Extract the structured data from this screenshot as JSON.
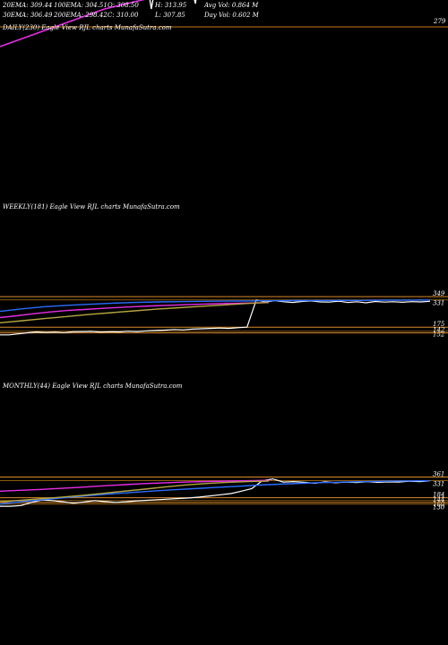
{
  "header": {
    "row1": [
      {
        "key": "ema20",
        "text": "20EMA: 309.44"
      },
      {
        "key": "ema100",
        "text": "100EMA: 304.51"
      },
      {
        "key": "open",
        "text": "O: 308.50"
      },
      {
        "key": "high",
        "text": "H: 313.95"
      },
      {
        "key": "avgvol",
        "text": "Avg Vol: 0.864  M"
      }
    ],
    "row2": [
      {
        "key": "ema30",
        "text": "30EMA: 306.49"
      },
      {
        "key": "ema200",
        "text": "200EMA: 298.42"
      },
      {
        "key": "close",
        "text": "C: 310.00"
      },
      {
        "key": "low",
        "text": "L: 307.85"
      },
      {
        "key": "dayvol",
        "text": "Day Vol: 0.602  M"
      }
    ]
  },
  "panels": {
    "daily": {
      "label": "DAILY(230) Eagle   View  RJL  charts MunafaSutra.com"
    },
    "weekly": {
      "label": "WEEKLY(181) Eagle   View  RJL  charts MunafaSutra.com"
    },
    "monthly": {
      "label": "MONTHLY(44) Eagle   View  RJL  charts MunafaSutra.com"
    }
  },
  "chart_data": [
    {
      "type": "line",
      "panel": "daily",
      "price_levels": [
        279
      ],
      "series": [
        {
          "role": "price",
          "color": "#ffffff",
          "values": [
            304,
            306,
            302,
            299,
            301,
            289,
            300,
            306,
            304,
            310,
            307,
            312,
            309,
            305,
            311,
            313,
            308,
            300,
            292,
            306,
            312,
            309,
            314,
            311,
            308,
            312,
            305,
            297,
            302,
            312,
            310,
            315,
            317,
            312,
            314,
            316,
            312,
            310
          ]
        },
        {
          "role": "ema-slow",
          "color": "#e62ee6",
          "values": [
            268,
            271,
            274,
            277,
            280,
            283,
            286,
            289,
            291,
            293,
            295,
            296,
            297,
            298,
            299,
            300,
            301,
            302,
            303,
            304,
            305,
            306,
            306,
            307,
            307,
            308,
            308,
            309,
            309,
            310,
            310
          ]
        },
        {
          "role": "ema-mid",
          "color": "#1e90ff",
          "values": [
            296,
            298,
            301,
            304,
            307,
            306,
            304,
            305,
            307,
            309,
            311
          ]
        }
      ]
    },
    {
      "type": "line",
      "panel": "weekly",
      "price_levels": [
        349,
        331,
        175,
        152,
        142
      ],
      "level_labels": [
        "349",
        "331",
        "175",
        "152",
        "142"
      ],
      "series": [
        {
          "role": "price",
          "color": "#ffffff",
          "values": [
            131,
            131,
            137,
            143,
            148,
            145,
            147,
            144,
            149,
            150,
            151,
            147,
            149,
            148,
            152,
            150,
            154,
            156,
            158,
            162,
            160,
            164,
            166,
            168,
            170,
            168,
            172,
            175,
            330,
            318,
            326,
            320,
            316,
            322,
            325,
            319,
            318,
            324,
            316,
            320,
            314,
            322,
            318,
            320,
            317,
            321,
            319,
            323
          ]
        },
        {
          "role": "ema-blue",
          "color": "#2b6cff",
          "values": [
            265,
            280,
            292,
            300,
            306,
            312,
            316,
            319,
            321,
            323,
            324,
            325,
            326,
            327,
            327,
            328,
            328,
            329,
            329,
            330
          ]
        },
        {
          "role": "ema-magenta",
          "color": "#e62ee6",
          "values": [
            230,
            240,
            252,
            262,
            270,
            276,
            282,
            287,
            292,
            296,
            300,
            303,
            306,
            309,
            311,
            313,
            315
          ]
        },
        {
          "role": "ema-olive",
          "color": "#b5a642",
          "values": [
            200,
            212,
            224,
            236,
            248,
            258,
            268,
            278,
            286,
            294,
            302,
            310,
            316
          ]
        }
      ]
    },
    {
      "type": "line",
      "panel": "monthly",
      "price_levels": [
        361,
        331,
        184,
        160,
        144,
        130
      ],
      "level_labels": [
        "361",
        "331",
        "184",
        "160",
        "144",
        "130"
      ],
      "series": [
        {
          "role": "price",
          "color": "#ffffff",
          "values": [
            112,
            112,
            118,
            145,
            165,
            160,
            150,
            138,
            148,
            160,
            152,
            145,
            150,
            158,
            162,
            168,
            172,
            178,
            182,
            190,
            200,
            210,
            220,
            240,
            262,
            330,
            345,
            318,
            322,
            316,
            308,
            320,
            312,
            318,
            314,
            322,
            316,
            320,
            318,
            326,
            322,
            330
          ]
        },
        {
          "role": "ema-blue",
          "color": "#2b6cff",
          "values": [
            130,
            150,
            168,
            185,
            200,
            215,
            228,
            240,
            252,
            262,
            272,
            282,
            292,
            300,
            308,
            314,
            318,
            322,
            325,
            328,
            330
          ]
        },
        {
          "role": "ema-magenta",
          "color": "#e62ee6",
          "values": [
            240,
            248,
            256,
            265,
            275,
            286,
            296,
            305,
            312,
            318,
            323,
            327,
            330,
            333
          ]
        },
        {
          "role": "ema-olive",
          "color": "#b5a642",
          "values": [
            150,
            162,
            176,
            190,
            205,
            222,
            240,
            258,
            276,
            294,
            306,
            316,
            322,
            326
          ]
        }
      ]
    }
  ]
}
